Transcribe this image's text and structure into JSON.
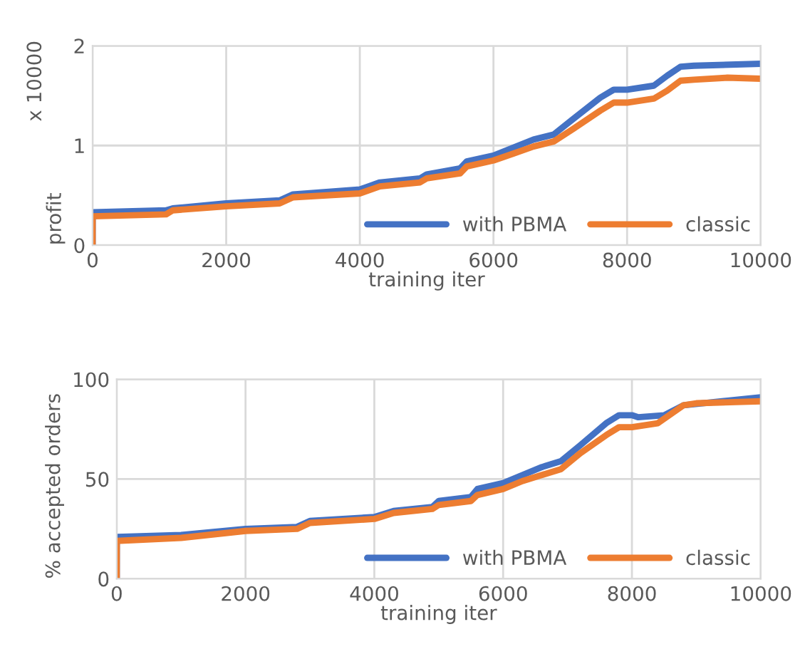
{
  "chart_data": [
    {
      "type": "line",
      "ylabel": "profit",
      "xlabel": "training iter",
      "annotations": [
        "x 10000"
      ],
      "xlim": [
        0,
        10000
      ],
      "xticks": [
        0,
        2000,
        4000,
        6000,
        8000,
        10000
      ],
      "ylim": [
        0,
        2
      ],
      "yticks": [
        0,
        1,
        2
      ],
      "grid": true,
      "legend": "bottom right",
      "marker": "none",
      "line_style": "solid",
      "series": [
        {
          "name": "with PBMA",
          "color": "#4472c4",
          "x": [
            0,
            1,
            1100,
            1200,
            2000,
            2800,
            3000,
            4000,
            4300,
            4900,
            5000,
            5500,
            5600,
            6000,
            6300,
            6600,
            6900,
            7200,
            7600,
            7800,
            8000,
            8400,
            8600,
            8800,
            9000,
            10000
          ],
          "values": [
            0,
            0.33,
            0.35,
            0.37,
            0.42,
            0.45,
            0.51,
            0.56,
            0.63,
            0.67,
            0.71,
            0.77,
            0.84,
            0.9,
            0.98,
            1.06,
            1.11,
            1.27,
            1.48,
            1.56,
            1.56,
            1.6,
            1.7,
            1.79,
            1.8,
            1.82
          ]
        },
        {
          "name": "classic",
          "color": "#ed7d31",
          "x": [
            0,
            1,
            1100,
            1200,
            2000,
            2800,
            3000,
            4000,
            4300,
            4900,
            5000,
            5500,
            5600,
            6000,
            6300,
            6600,
            6900,
            7200,
            7600,
            7800,
            8000,
            8400,
            8600,
            8800,
            9000,
            9500,
            10000
          ],
          "values": [
            0,
            0.29,
            0.31,
            0.35,
            0.39,
            0.42,
            0.48,
            0.52,
            0.59,
            0.63,
            0.67,
            0.72,
            0.79,
            0.85,
            0.92,
            0.99,
            1.04,
            1.17,
            1.35,
            1.43,
            1.43,
            1.47,
            1.55,
            1.65,
            1.66,
            1.68,
            1.67
          ]
        }
      ]
    },
    {
      "type": "line",
      "ylabel": "% accepted orders",
      "xlabel": "training iter",
      "xlim": [
        0,
        10000
      ],
      "xticks": [
        0,
        2000,
        4000,
        6000,
        8000,
        10000
      ],
      "ylim": [
        0,
        100
      ],
      "yticks": [
        0,
        50,
        100
      ],
      "grid": true,
      "legend": "bottom right",
      "marker": "none",
      "line_style": "solid",
      "series": [
        {
          "name": "with PBMA",
          "color": "#4472c4",
          "x": [
            0,
            1,
            1000,
            2000,
            2800,
            3000,
            4000,
            4300,
            4900,
            5000,
            5500,
            5600,
            6000,
            6300,
            6600,
            6900,
            7200,
            7600,
            7800,
            8000,
            8100,
            8500,
            8800,
            10000
          ],
          "values": [
            0,
            21,
            22,
            25,
            26,
            29,
            31,
            34,
            36,
            39,
            41,
            45,
            48,
            52,
            56,
            59,
            67,
            78,
            82,
            82,
            81,
            82,
            87,
            91
          ]
        },
        {
          "name": "classic",
          "color": "#ed7d31",
          "x": [
            0,
            1,
            1000,
            2000,
            2800,
            3000,
            4000,
            4300,
            4900,
            5000,
            5500,
            5600,
            6000,
            6300,
            6600,
            6900,
            7200,
            7600,
            7800,
            8000,
            8400,
            8800,
            9000,
            10000
          ],
          "values": [
            0,
            19,
            20.5,
            24,
            25,
            28,
            30,
            33,
            35,
            37,
            39,
            42,
            45,
            49,
            52,
            55,
            63,
            72,
            76,
            76,
            78,
            87,
            88,
            89
          ]
        }
      ]
    }
  ]
}
